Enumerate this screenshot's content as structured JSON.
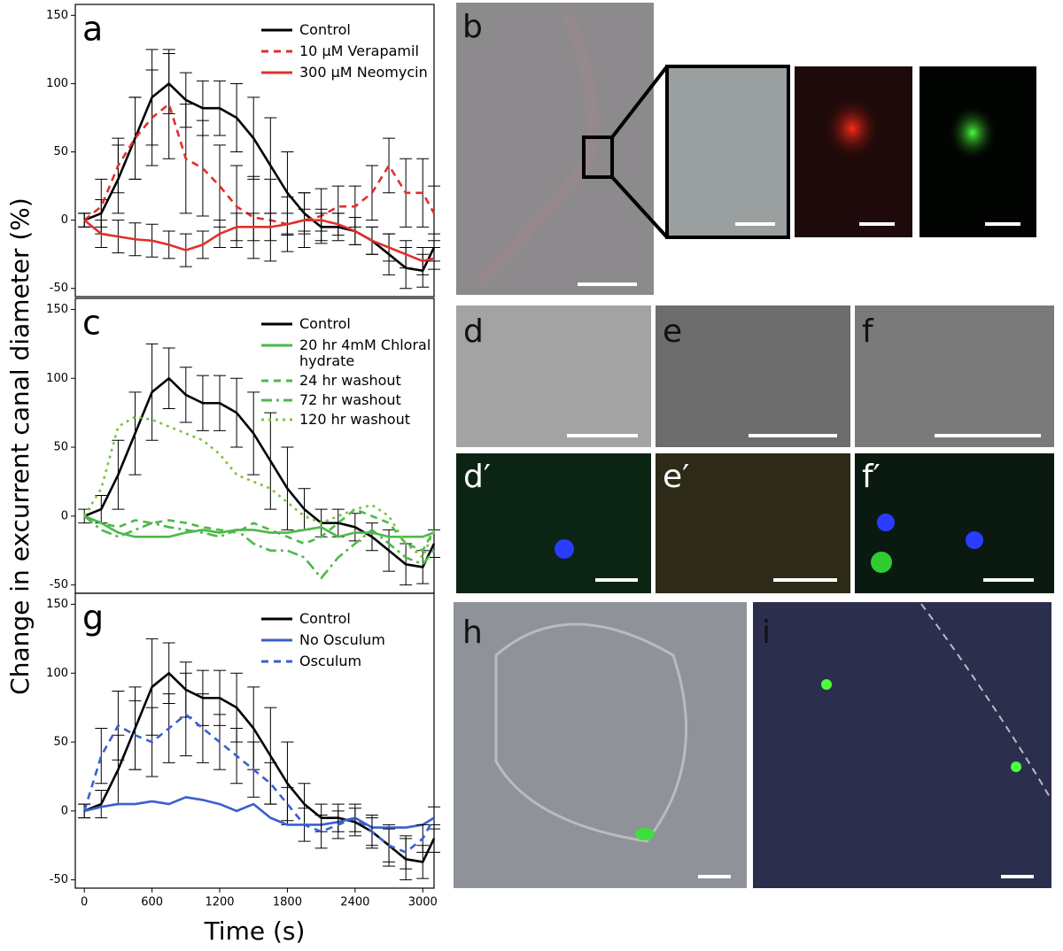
{
  "figure": {
    "ylabel": "Change in excurrent canal diameter (%)"
  },
  "chart_data": [
    {
      "type": "line",
      "panel": "a",
      "xlim": [
        -80,
        3100
      ],
      "ylim": [
        -56,
        158
      ],
      "yticks": [
        -50,
        0,
        50,
        100,
        150
      ],
      "x": [
        0,
        150,
        300,
        450,
        600,
        750,
        900,
        1050,
        1200,
        1350,
        1500,
        1650,
        1800,
        1950,
        2100,
        2250,
        2400,
        2550,
        2700,
        2850,
        3000,
        3100
      ],
      "series": [
        {
          "name": "Control",
          "color": "#000000",
          "dash": "solid",
          "values": [
            0,
            5,
            30,
            60,
            90,
            100,
            88,
            82,
            82,
            75,
            60,
            40,
            20,
            5,
            -5,
            -5,
            -8,
            -15,
            -25,
            -35,
            -37,
            -20
          ],
          "errors": [
            5,
            10,
            25,
            30,
            35,
            22,
            20,
            20,
            20,
            25,
            30,
            35,
            30,
            15,
            10,
            10,
            10,
            10,
            15,
            15,
            12,
            10
          ]
        },
        {
          "name": "10 µM Verapamil",
          "color": "#e0302a",
          "dash": "dashed",
          "values": [
            0,
            10,
            40,
            60,
            75,
            85,
            45,
            38,
            25,
            10,
            2,
            0,
            -3,
            0,
            3,
            10,
            10,
            20,
            40,
            20,
            20,
            5
          ],
          "errors": [
            5,
            20,
            20,
            30,
            35,
            40,
            40,
            35,
            30,
            30,
            30,
            30,
            20,
            20,
            20,
            15,
            15,
            20,
            20,
            25,
            25,
            20
          ]
        },
        {
          "name": "300 µM Neomycin",
          "color": "#e0302a",
          "dash": "solid",
          "values": [
            0,
            -10,
            -12,
            -14,
            -15,
            -18,
            -22,
            -18,
            -10,
            -5,
            -5,
            -5,
            -3,
            0,
            0,
            -3,
            -8,
            -15,
            -20,
            -25,
            -30,
            -28
          ],
          "errors": [
            5,
            10,
            12,
            12,
            12,
            10,
            12,
            10,
            10,
            10,
            10,
            10,
            8,
            8,
            8,
            8,
            10,
            10,
            10,
            10,
            10,
            8
          ]
        }
      ]
    },
    {
      "type": "line",
      "panel": "c",
      "xlim": [
        -80,
        3100
      ],
      "ylim": [
        -56,
        158
      ],
      "yticks": [
        -50,
        0,
        50,
        100,
        150
      ],
      "x": [
        0,
        150,
        300,
        450,
        600,
        750,
        900,
        1050,
        1200,
        1350,
        1500,
        1650,
        1800,
        1950,
        2100,
        2250,
        2400,
        2550,
        2700,
        2850,
        3000,
        3100
      ],
      "series": [
        {
          "name": "Control",
          "color": "#000000",
          "dash": "solid",
          "values": [
            0,
            5,
            30,
            60,
            90,
            100,
            88,
            82,
            82,
            75,
            60,
            40,
            20,
            5,
            -5,
            -5,
            -8,
            -15,
            -25,
            -35,
            -37,
            -20
          ],
          "errors": [
            5,
            10,
            25,
            30,
            35,
            22,
            20,
            20,
            20,
            25,
            30,
            35,
            30,
            15,
            10,
            10,
            10,
            10,
            15,
            15,
            12,
            10
          ]
        },
        {
          "name": "20 hr 4mM Chloral hydrate",
          "color": "#4db848",
          "dash": "solid",
          "values": [
            0,
            -5,
            -12,
            -15,
            -15,
            -15,
            -12,
            -10,
            -12,
            -10,
            -10,
            -12,
            -12,
            -10,
            -8,
            -15,
            -12,
            -12,
            -15,
            -15,
            -15,
            -12
          ]
        },
        {
          "name": "24 hr washout",
          "color": "#4db848",
          "dash": "dashed",
          "values": [
            0,
            -5,
            -8,
            -3,
            -5,
            -3,
            -5,
            -8,
            -10,
            -12,
            -5,
            -10,
            -15,
            -20,
            -15,
            -5,
            5,
            0,
            -5,
            -20,
            -25,
            -10
          ]
        },
        {
          "name": "72 hr washout",
          "color": "#4db848",
          "dash": "dashdot",
          "values": [
            0,
            -10,
            -15,
            -10,
            -5,
            -8,
            -10,
            -12,
            -15,
            -10,
            -20,
            -25,
            -25,
            -30,
            -45,
            -30,
            -20,
            -10,
            -20,
            -30,
            -35,
            -25
          ]
        },
        {
          "name": "120 hr washout",
          "color": "#7cc242",
          "dash": "dotted",
          "values": [
            0,
            20,
            65,
            72,
            70,
            65,
            60,
            55,
            45,
            30,
            25,
            20,
            10,
            0,
            -5,
            0,
            5,
            8,
            0,
            -20,
            -30,
            -10
          ]
        }
      ]
    },
    {
      "type": "line",
      "panel": "g",
      "xlim": [
        -80,
        3100
      ],
      "ylim": [
        -56,
        158
      ],
      "yticks": [
        -50,
        0,
        50,
        100,
        150
      ],
      "xlabel": "Time (s)",
      "xticks": [
        0,
        600,
        1200,
        1800,
        2400,
        3000
      ],
      "x": [
        0,
        150,
        300,
        450,
        600,
        750,
        900,
        1050,
        1200,
        1350,
        1500,
        1650,
        1800,
        1950,
        2100,
        2250,
        2400,
        2550,
        2700,
        2850,
        3000,
        3100
      ],
      "series": [
        {
          "name": "Control",
          "color": "#000000",
          "dash": "solid",
          "values": [
            0,
            5,
            30,
            60,
            90,
            100,
            88,
            82,
            82,
            75,
            60,
            40,
            20,
            5,
            -5,
            -5,
            -8,
            -15,
            -25,
            -35,
            -37,
            -20
          ],
          "errors": [
            5,
            10,
            25,
            30,
            35,
            22,
            20,
            20,
            20,
            25,
            30,
            35,
            30,
            15,
            10,
            10,
            10,
            10,
            15,
            15,
            12,
            10
          ]
        },
        {
          "name": "No Osculum",
          "color": "#3a5fcd",
          "dash": "solid",
          "values": [
            0,
            3,
            5,
            5,
            7,
            5,
            10,
            8,
            5,
            0,
            5,
            -5,
            -10,
            -10,
            -10,
            -8,
            -5,
            -12,
            -12,
            -12,
            -10,
            -5
          ]
        },
        {
          "name": "Osculum",
          "color": "#3a5fcd",
          "dash": "dashed",
          "values": [
            0,
            40,
            62,
            55,
            50,
            60,
            70,
            60,
            50,
            40,
            30,
            20,
            5,
            -10,
            -15,
            -10,
            -5,
            -15,
            -25,
            -30,
            -20,
            -5
          ],
          "errors": [
            5,
            20,
            25,
            25,
            25,
            25,
            30,
            25,
            20,
            20,
            20,
            15,
            12,
            12,
            12,
            10,
            10,
            12,
            12,
            12,
            10,
            8
          ]
        }
      ]
    }
  ],
  "image_panels": [
    {
      "label": "b"
    },
    {
      "label": "d"
    },
    {
      "label": "e"
    },
    {
      "label": "f"
    },
    {
      "label": "d′"
    },
    {
      "label": "e′"
    },
    {
      "label": "f′"
    },
    {
      "label": "h"
    },
    {
      "label": "i"
    }
  ]
}
